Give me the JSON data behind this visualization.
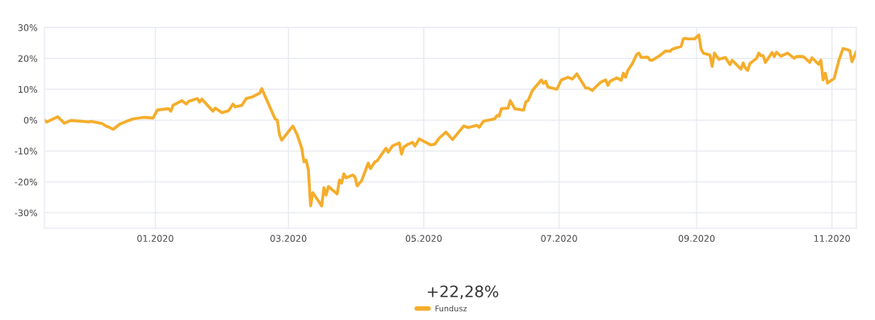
{
  "chart_data": {
    "type": "line",
    "x": [
      "2019-11-12",
      "2019-11-13",
      "2019-11-18",
      "2019-11-21",
      "2019-11-24",
      "2019-12-02",
      "2019-12-03",
      "2019-12-08",
      "2019-12-10",
      "2019-12-11",
      "2019-12-13",
      "2019-12-16",
      "2019-12-19",
      "2019-12-22",
      "2019-12-27",
      "2019-12-31",
      "2020-01-02",
      "2020-01-07",
      "2020-01-08",
      "2020-01-09",
      "2020-01-13",
      "2020-01-15",
      "2020-01-16",
      "2020-01-20",
      "2020-01-21",
      "2020-01-22",
      "2020-01-27",
      "2020-01-28",
      "2020-01-31",
      "2020-02-03",
      "2020-02-05",
      "2020-02-06",
      "2020-02-09",
      "2020-02-11",
      "2020-02-14",
      "2020-02-17",
      "2020-02-18",
      "2020-02-24",
      "2020-02-25",
      "2020-02-26",
      "2020-02-27",
      "2020-03-03",
      "2020-03-05",
      "2020-03-07",
      "2020-03-08",
      "2020-03-09",
      "2020-03-10",
      "2020-03-11",
      "2020-03-12",
      "2020-03-16",
      "2020-03-17",
      "2020-03-18",
      "2020-03-19",
      "2020-03-23",
      "2020-03-24",
      "2020-03-25",
      "2020-03-26",
      "2020-03-27",
      "2020-03-30",
      "2020-03-31",
      "2020-04-01",
      "2020-04-03",
      "2020-04-06",
      "2020-04-07",
      "2020-04-09",
      "2020-04-10",
      "2020-04-14",
      "2020-04-15",
      "2020-04-17",
      "2020-04-20",
      "2020-04-21",
      "2020-04-22",
      "2020-04-24",
      "2020-04-26",
      "2020-04-27",
      "2020-04-29",
      "2020-05-04",
      "2020-05-06",
      "2020-05-08",
      "2020-05-11",
      "2020-05-14",
      "2020-05-19",
      "2020-05-21",
      "2020-05-25",
      "2020-05-26",
      "2020-05-28",
      "2020-06-02",
      "2020-06-03",
      "2020-06-04",
      "2020-06-05",
      "2020-06-08",
      "2020-06-09",
      "2020-06-11",
      "2020-06-15",
      "2020-06-16",
      "2020-06-17",
      "2020-06-19",
      "2020-06-23",
      "2020-06-24",
      "2020-06-25",
      "2020-06-26",
      "2020-06-30",
      "2020-07-02",
      "2020-07-05",
      "2020-07-07",
      "2020-07-09",
      "2020-07-13",
      "2020-07-14",
      "2020-07-16",
      "2020-07-17",
      "2020-07-20",
      "2020-07-22",
      "2020-07-23",
      "2020-07-24",
      "2020-07-27",
      "2020-07-29",
      "2020-07-30",
      "2020-07-31",
      "2020-08-01",
      "2020-08-03",
      "2020-08-05",
      "2020-08-06",
      "2020-08-07",
      "2020-08-10",
      "2020-08-11",
      "2020-08-12",
      "2020-08-15",
      "2020-08-18",
      "2020-08-20",
      "2020-08-21",
      "2020-08-25",
      "2020-08-26",
      "2020-08-27",
      "2020-08-28",
      "2020-08-31",
      "2020-09-02",
      "2020-09-03",
      "2020-09-04",
      "2020-09-07",
      "2020-09-08",
      "2020-09-09",
      "2020-09-11",
      "2020-09-14",
      "2020-09-16",
      "2020-09-17",
      "2020-09-21",
      "2020-09-22",
      "2020-09-23",
      "2020-09-24",
      "2020-09-25",
      "2020-09-28",
      "2020-09-29",
      "2020-09-30",
      "2020-10-01",
      "2020-10-02",
      "2020-10-05",
      "2020-10-06",
      "2020-10-07",
      "2020-10-09",
      "2020-10-12",
      "2020-10-15",
      "2020-10-16",
      "2020-10-19",
      "2020-10-20",
      "2020-10-22",
      "2020-10-23",
      "2020-10-26",
      "2020-10-27",
      "2020-10-28",
      "2020-10-29",
      "2020-10-30",
      "2020-11-02",
      "2020-11-04",
      "2020-11-06",
      "2020-11-09",
      "2020-11-10",
      "2020-11-12"
    ],
    "series": [
      {
        "name": "Fundusz",
        "color": "#f5ad2b",
        "values": [
          0,
          -0.6,
          1.1,
          -1.0,
          -0.1,
          -0.6,
          -0.4,
          -1.1,
          -2.0,
          -2.2,
          -3.0,
          -1.3,
          -0.4,
          0.4,
          0.9,
          0.7,
          3.3,
          3.7,
          2.9,
          4.8,
          6.3,
          5.2,
          6.1,
          7.0,
          5.8,
          6.8,
          2.9,
          3.9,
          2.4,
          3.0,
          5.2,
          4.3,
          4.8,
          7.0,
          7.6,
          8.7,
          10.2,
          0.4,
          0,
          -4.8,
          -6.5,
          -1.9,
          -4.8,
          -9.1,
          -13.5,
          -13,
          -16.1,
          -27.8,
          -23.5,
          -27.8,
          -21.9,
          -24.3,
          -21.5,
          -23.9,
          -19.4,
          -20.4,
          -17.4,
          -18.7,
          -17.8,
          -18.4,
          -21.3,
          -19.6,
          -13.9,
          -15.7,
          -13.5,
          -13.2,
          -9.1,
          -10.4,
          -8.3,
          -7.4,
          -11.0,
          -8.7,
          -7.8,
          -7.2,
          -8.4,
          -6.1,
          -8.0,
          -7.8,
          -5.8,
          -3.9,
          -6.3,
          -1.9,
          -2.4,
          -1.7,
          -2.3,
          -0.3,
          0.4,
          1.5,
          1.3,
          3.7,
          3.9,
          6.3,
          3.7,
          3.2,
          5.9,
          6.3,
          9.6,
          13,
          11.9,
          12.6,
          10.7,
          10,
          13,
          13.9,
          13.3,
          15.0,
          10.4,
          10.4,
          9.6,
          10.4,
          12.4,
          13,
          11.3,
          12.6,
          13.7,
          12.9,
          15.2,
          13.9,
          16.1,
          18.3,
          21.3,
          21.7,
          20.3,
          20.4,
          19.4,
          19.4,
          20.7,
          22.4,
          22.3,
          23.0,
          23.9,
          26.3,
          26.5,
          26.3,
          26.3,
          27.6,
          23.0,
          21.7,
          21.1,
          17.4,
          21.7,
          19.7,
          20.3,
          18.0,
          19.4,
          16.5,
          18.5,
          16.9,
          16.1,
          18.3,
          20.0,
          21.7,
          20.9,
          20.9,
          18.7,
          21.9,
          20.6,
          22.0,
          20.7,
          21.7,
          20.0,
          20.6,
          20.6,
          20.0,
          18.7,
          20.2,
          18.1,
          19.4,
          13.0,
          15.2,
          12.0,
          13.5,
          19.1,
          23.2,
          22.6,
          18.9,
          22.3
        ]
      }
    ],
    "xlim": [
      "2019-11-12",
      "2020-11-12"
    ],
    "xticks": [
      {
        "value": "2020-01-01",
        "label": "01.2020"
      },
      {
        "value": "2020-03-01",
        "label": "03.2020"
      },
      {
        "value": "2020-05-01",
        "label": "05.2020"
      },
      {
        "value": "2020-07-01",
        "label": "07.2020"
      },
      {
        "value": "2020-09-01",
        "label": "09.2020"
      },
      {
        "value": "2020-11-01",
        "label": "11.2020"
      }
    ],
    "ylim": [
      -35,
      30
    ],
    "yticks": [
      {
        "value": -30,
        "label": "-30%"
      },
      {
        "value": -20,
        "label": "-20%"
      },
      {
        "value": -10,
        "label": "-10%"
      },
      {
        "value": 0,
        "label": "0%"
      },
      {
        "value": 10,
        "label": "10%"
      },
      {
        "value": 20,
        "label": "20%"
      },
      {
        "value": 30,
        "label": "30%"
      }
    ],
    "grid": true,
    "legend": "bottom",
    "annotations": [
      "+22,28%"
    ],
    "line_style": "solid",
    "marker": "none"
  }
}
